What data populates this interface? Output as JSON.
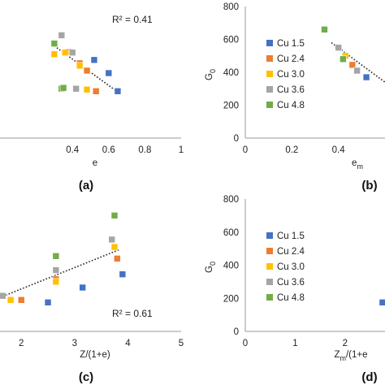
{
  "colors": {
    "Cu 1.5": "#4472C4",
    "Cu 2.4": "#ED7D31",
    "Cu 3.0": "#FFC000",
    "Cu 3.6": "#A5A5A5",
    "Cu 4.8": "#70AD47"
  },
  "chart_data": [
    {
      "panel": "(a)",
      "type": "scatter",
      "xlabel": "e",
      "ylabel": "",
      "xlim": [
        0,
        1
      ],
      "ylim": [
        0,
        800
      ],
      "xticks": [
        "0.4",
        "0.6",
        "0.8",
        "1"
      ],
      "yticks": [],
      "annotation": "R² = 0.41",
      "trendline": {
        "x": [
          0.3,
          0.65
        ],
        "y": [
          560,
          280
        ]
      },
      "series": [
        {
          "name": "Cu 1.5",
          "x": [
            0.52,
            0.6,
            0.65
          ],
          "y": [
            475,
            395,
            285
          ]
        },
        {
          "name": "Cu 2.4",
          "x": [
            0.38,
            0.44,
            0.48,
            0.53
          ],
          "y": [
            525,
            455,
            410,
            285
          ]
        },
        {
          "name": "Cu 3.0",
          "x": [
            0.3,
            0.36,
            0.44,
            0.48
          ],
          "y": [
            510,
            520,
            440,
            295
          ]
        },
        {
          "name": "Cu 3.6",
          "x": [
            0.34,
            0.4,
            0.42
          ],
          "y": [
            625,
            520,
            300
          ]
        },
        {
          "name": "Cu 4.8",
          "x": [
            0.3,
            0.34,
            0.35
          ],
          "y": [
            575,
            300,
            305
          ]
        }
      ]
    },
    {
      "panel": "(b)",
      "type": "scatter",
      "xlabel": "e",
      "xlabel_sub": "m",
      "ylabel": "G",
      "ylabel_sub": "0",
      "xlim": [
        0,
        0.6
      ],
      "ylim": [
        0,
        800
      ],
      "xticks": [
        "0",
        "0.2",
        "0.4"
      ],
      "yticks": [
        "0",
        "200",
        "400",
        "600",
        "800"
      ],
      "legend": "inside-left",
      "trendline": {
        "x": [
          0.37,
          0.6
        ],
        "y": [
          580,
          340
        ]
      },
      "series": [
        {
          "name": "Cu 1.5",
          "x": [
            0.52
          ],
          "y": [
            370
          ]
        },
        {
          "name": "Cu 2.4",
          "x": [
            0.46
          ],
          "y": [
            445
          ]
        },
        {
          "name": "Cu 3.0",
          "x": [
            0.43
          ],
          "y": [
            500
          ]
        },
        {
          "name": "Cu 3.6",
          "x": [
            0.4,
            0.48
          ],
          "y": [
            550,
            410
          ]
        },
        {
          "name": "Cu 4.8",
          "x": [
            0.34,
            0.42
          ],
          "y": [
            660,
            480
          ]
        }
      ]
    },
    {
      "panel": "(c)",
      "type": "scatter",
      "xlabel": "Z/(1+e)",
      "ylabel": "",
      "xlim": [
        1.6,
        5
      ],
      "ylim": [
        0,
        800
      ],
      "xticks": [
        "2",
        "3",
        "4",
        "5"
      ],
      "yticks": [],
      "annotation": "R² = 0.61",
      "trendline": {
        "x": [
          1.6,
          3.85
        ],
        "y": [
          205,
          495
        ]
      },
      "series": [
        {
          "name": "Cu 1.5",
          "x": [
            2.5,
            3.15,
            3.9
          ],
          "y": [
            175,
            265,
            345
          ]
        },
        {
          "name": "Cu 2.4",
          "x": [
            2.0,
            2.65,
            3.8
          ],
          "y": [
            190,
            315,
            440
          ]
        },
        {
          "name": "Cu 3.0",
          "x": [
            1.8,
            2.65,
            3.75
          ],
          "y": [
            190,
            300,
            510
          ]
        },
        {
          "name": "Cu 3.6",
          "x": [
            1.65,
            2.65,
            3.7
          ],
          "y": [
            215,
            370,
            555
          ]
        },
        {
          "name": "Cu 4.8",
          "x": [
            2.65,
            3.75
          ],
          "y": [
            455,
            700
          ]
        }
      ]
    },
    {
      "panel": "(d)",
      "type": "scatter",
      "xlabel": "Z",
      "xlabel_sub": "m",
      "xlabel_tail": "/(1+e",
      "ylabel": "G",
      "ylabel_sub": "0",
      "xlim": [
        0,
        2.8
      ],
      "ylim": [
        0,
        800
      ],
      "xticks": [
        "0",
        "1",
        "2"
      ],
      "yticks": [
        "0",
        "200",
        "400",
        "600",
        "800"
      ],
      "legend": "inside-left",
      "series": [
        {
          "name": "Cu 1.5",
          "x": [
            2.75
          ],
          "y": [
            175
          ]
        },
        {
          "name": "Cu 2.4",
          "x": [],
          "y": []
        },
        {
          "name": "Cu 3.0",
          "x": [],
          "y": []
        },
        {
          "name": "Cu 3.6",
          "x": [],
          "y": []
        },
        {
          "name": "Cu 4.8",
          "x": [],
          "y": []
        }
      ]
    }
  ]
}
